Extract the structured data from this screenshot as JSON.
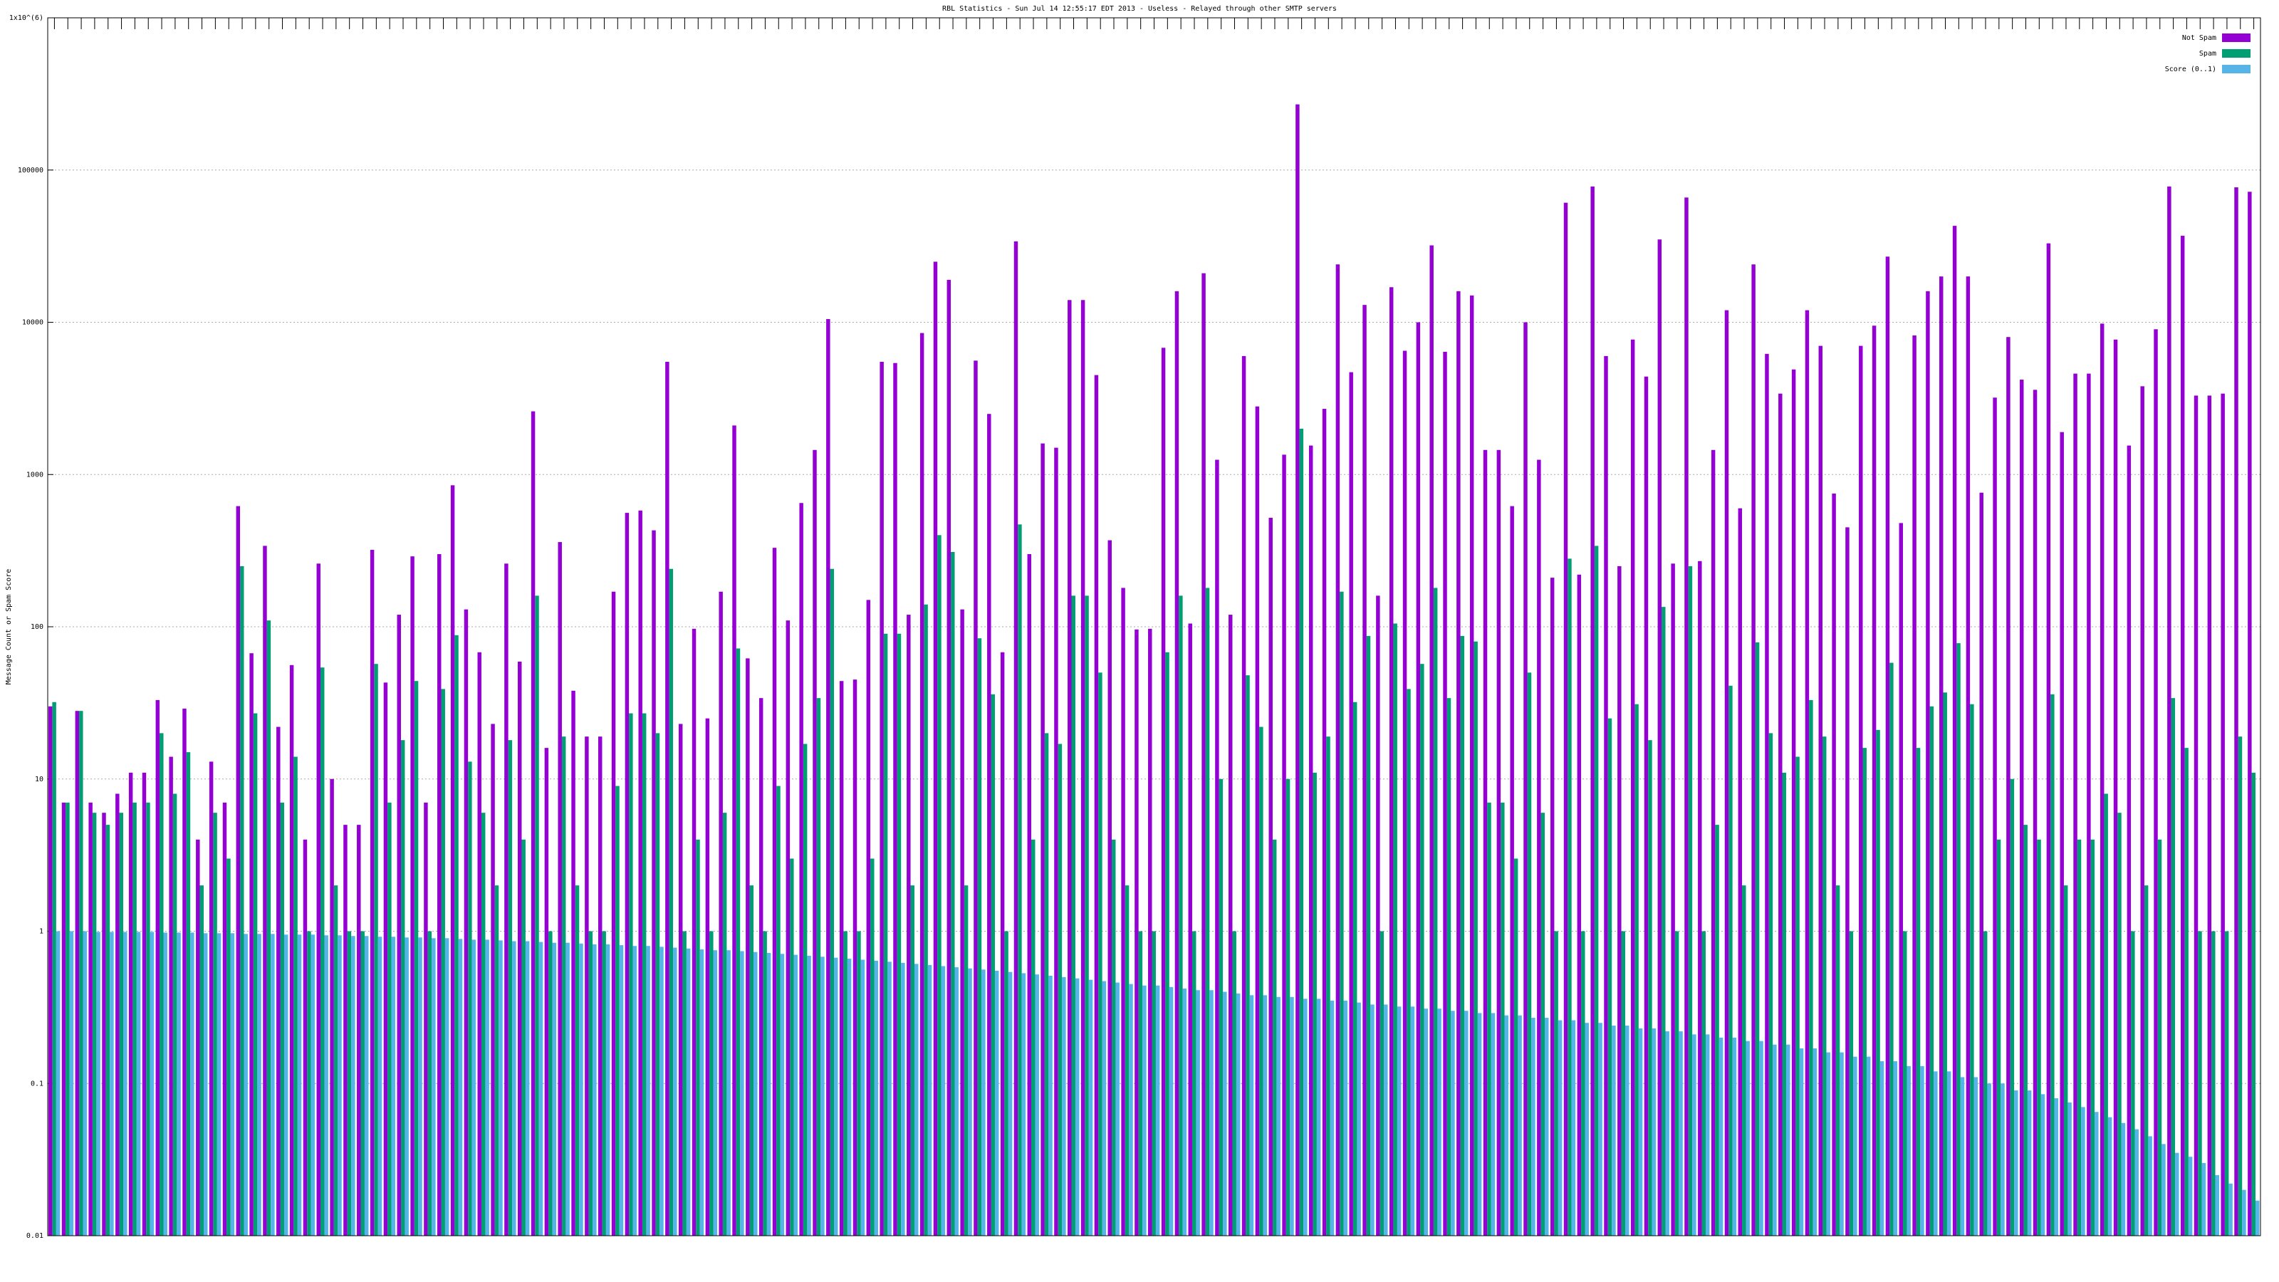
{
  "chart_data": {
    "type": "bar",
    "title": "RBL Statistics - Sun Jul 14 12:55:17 EDT 2013 - Useless - Relayed through other SMTP servers",
    "y_label": "Message Count or Spam Score",
    "log_y": true,
    "grid": true,
    "legend": "top-right",
    "ylim": [
      0.01,
      1000000
    ],
    "yticks": [
      0.01,
      0.1,
      1,
      10,
      100,
      1000,
      10000,
      100000,
      {
        "value": 1000000,
        "label": "1x10^(6)"
      }
    ],
    "categories": [
      null,
      null,
      null,
      null,
      null,
      null,
      null,
      null,
      null,
      null,
      null,
      null,
      null,
      null,
      null,
      null,
      null,
      null,
      null,
      null,
      null,
      null,
      null,
      null,
      null,
      null,
      null,
      null,
      null,
      null,
      null,
      null,
      null,
      null,
      null,
      null,
      null,
      null,
      null,
      null,
      null,
      null,
      null,
      null,
      null,
      null,
      null,
      null,
      null,
      null,
      null,
      null,
      null,
      null,
      null,
      null,
      null,
      null,
      null,
      null,
      null,
      null,
      null,
      null,
      null,
      null,
      null,
      null,
      null,
      null,
      null,
      null,
      null,
      null,
      null,
      null,
      null,
      null,
      null,
      null,
      null,
      null,
      null,
      null,
      null,
      null,
      null,
      null,
      null,
      null,
      null,
      null,
      null,
      null,
      null,
      null,
      null,
      null,
      null,
      null,
      null,
      null,
      null,
      null,
      null,
      null,
      null,
      null,
      null,
      null,
      null,
      null,
      null,
      null,
      null,
      null,
      null,
      null,
      null,
      null,
      null,
      null,
      null,
      null,
      null,
      null,
      null,
      null,
      null,
      null,
      null,
      null,
      null,
      null,
      null,
      null,
      null,
      null,
      null,
      null,
      null,
      null,
      null,
      null,
      null,
      null,
      null,
      null,
      null,
      null,
      null,
      null,
      null,
      null,
      null,
      null,
      null,
      null,
      null,
      null,
      null,
      null,
      null,
      null,
      null
    ],
    "series": [
      {
        "name": "Not Spam",
        "color": "#9400d3",
        "values": [
          30,
          7,
          28,
          7,
          6,
          8,
          11,
          11,
          33,
          14,
          29,
          4,
          13,
          7,
          620,
          67,
          340,
          22,
          56,
          4,
          260,
          10,
          5,
          5,
          320,
          43,
          120,
          290,
          7,
          300,
          850,
          130,
          68,
          23,
          260,
          59,
          2600,
          16,
          360,
          38,
          19,
          19,
          170,
          560,
          580,
          430,
          5500,
          23,
          97,
          25,
          170,
          2100,
          62,
          34,
          330,
          110,
          650,
          1450,
          10500,
          44,
          45,
          150,
          5500,
          5400,
          120,
          8500,
          25000,
          19000,
          130,
          5600,
          2500,
          68,
          34000,
          300,
          1600,
          1500,
          14000,
          14000,
          4500,
          370,
          180,
          96,
          97,
          6800,
          16000,
          105,
          21000,
          1250,
          120,
          6000,
          2800,
          520,
          1350,
          270000,
          1550,
          2700,
          24000,
          4700,
          13000,
          160,
          17000,
          6500,
          10000,
          32000,
          6400,
          16000,
          15000,
          1450,
          1450,
          620,
          10000,
          1250,
          210,
          61000,
          220,
          78000,
          6000,
          250,
          7700,
          4400,
          35000,
          260,
          66000,
          270,
          1450,
          12000,
          600,
          24000,
          6200,
          3400,
          4900,
          12000,
          7000,
          750,
          450,
          7000,
          9500,
          27000,
          480,
          8200,
          16000,
          20000,
          43000,
          20000,
          760,
          3200,
          8000,
          4200,
          3600,
          33000,
          1900,
          4600,
          4600,
          9800,
          7700,
          1550,
          3800,
          9000,
          78000,
          37000,
          3300,
          3300,
          3400,
          77000,
          72000
        ]
      },
      {
        "name": "Spam",
        "color": "#009e73",
        "values": [
          32,
          7,
          28,
          6,
          5,
          6,
          7,
          7,
          20,
          8,
          15,
          2,
          6,
          3,
          250,
          27,
          110,
          7,
          14,
          1,
          54,
          2,
          1,
          1,
          57,
          7,
          18,
          44,
          1,
          39,
          88,
          13,
          6,
          2,
          18,
          4,
          160,
          1,
          19,
          2,
          1,
          1,
          9,
          27,
          27,
          20,
          240,
          1,
          4,
          1,
          6,
          72,
          2,
          1,
          9,
          3,
          17,
          34,
          240,
          1,
          1,
          3,
          90,
          90,
          2,
          140,
          400,
          310,
          2,
          84,
          36,
          1,
          470,
          4,
          20,
          17,
          160,
          160,
          50,
          4,
          2,
          1,
          1,
          68,
          160,
          1,
          180,
          10,
          1,
          48,
          22,
          4,
          10,
          2000,
          11,
          19,
          170,
          32,
          87,
          1,
          105,
          39,
          57,
          180,
          34,
          87,
          80,
          7,
          7,
          3,
          50,
          6,
          1,
          280,
          1,
          340,
          25,
          1,
          31,
          18,
          135,
          1,
          250,
          1,
          5,
          41,
          2,
          79,
          20,
          11,
          14,
          33,
          19,
          2,
          1,
          16,
          21,
          58,
          1,
          16,
          30,
          37,
          78,
          31,
          1,
          4,
          10,
          5,
          4,
          36,
          2,
          4,
          4,
          8,
          6,
          1,
          2,
          4,
          34,
          16,
          1,
          1,
          1,
          19,
          11
        ]
      },
      {
        "name": "Score (0..1)",
        "color": "#56b4e9",
        "values": [
          1,
          1,
          1,
          0.99,
          0.99,
          0.99,
          0.99,
          0.99,
          0.98,
          0.98,
          0.98,
          0.97,
          0.97,
          0.97,
          0.96,
          0.96,
          0.96,
          0.95,
          0.95,
          0.95,
          0.94,
          0.94,
          0.93,
          0.93,
          0.92,
          0.92,
          0.91,
          0.91,
          0.9,
          0.9,
          0.89,
          0.88,
          0.88,
          0.87,
          0.86,
          0.86,
          0.85,
          0.84,
          0.84,
          0.83,
          0.82,
          0.82,
          0.81,
          0.8,
          0.8,
          0.79,
          0.78,
          0.77,
          0.76,
          0.75,
          0.75,
          0.74,
          0.73,
          0.72,
          0.71,
          0.7,
          0.69,
          0.68,
          0.67,
          0.66,
          0.65,
          0.64,
          0.63,
          0.62,
          0.61,
          0.6,
          0.59,
          0.58,
          0.57,
          0.56,
          0.55,
          0.54,
          0.53,
          0.52,
          0.51,
          0.5,
          0.49,
          0.48,
          0.47,
          0.46,
          0.45,
          0.44,
          0.44,
          0.43,
          0.42,
          0.41,
          0.41,
          0.4,
          0.39,
          0.38,
          0.38,
          0.37,
          0.37,
          0.36,
          0.36,
          0.35,
          0.35,
          0.34,
          0.33,
          0.33,
          0.32,
          0.32,
          0.31,
          0.31,
          0.3,
          0.3,
          0.29,
          0.29,
          0.28,
          0.28,
          0.27,
          0.27,
          0.26,
          0.26,
          0.25,
          0.25,
          0.24,
          0.24,
          0.23,
          0.23,
          0.22,
          0.22,
          0.21,
          0.21,
          0.2,
          0.2,
          0.19,
          0.19,
          0.18,
          0.18,
          0.17,
          0.17,
          0.16,
          0.16,
          0.15,
          0.15,
          0.14,
          0.14,
          0.13,
          0.13,
          0.12,
          0.12,
          0.11,
          0.11,
          0.1,
          0.1,
          0.09,
          0.09,
          0.085,
          0.08,
          0.075,
          0.07,
          0.065,
          0.06,
          0.055,
          0.05,
          0.045,
          0.04,
          0.035,
          0.033,
          0.03,
          0.025,
          0.022,
          0.02,
          0.017
        ]
      }
    ]
  }
}
